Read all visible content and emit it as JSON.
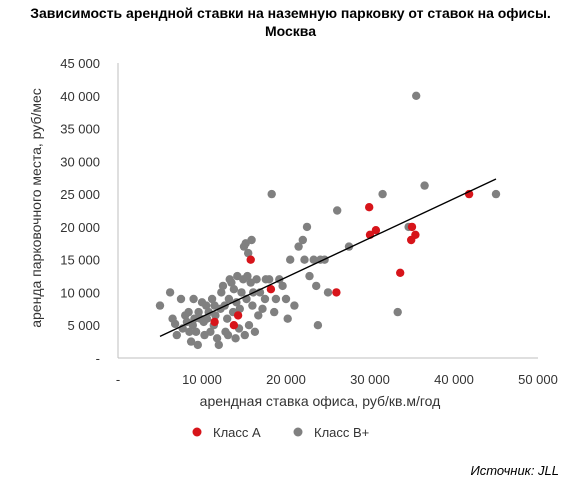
{
  "title_line1": "Зависимость арендной ставки на наземную парковку от ставок на офисы.",
  "title_line2": "Москва",
  "source": "Источник: JLL",
  "chart_data": {
    "type": "scatter",
    "xlabel": "арендная ставка офиса, руб/кв.м/год",
    "ylabel": "аренда парковочного места, руб/мес",
    "xlim": [
      0,
      50000
    ],
    "ylim": [
      0,
      45000
    ],
    "x_ticks": [
      "-",
      "10 000",
      "20 000",
      "30 000",
      "40 000",
      "50 000"
    ],
    "y_ticks": [
      "-",
      "5 000",
      "10 000",
      "15 000",
      "20 000",
      "25 000",
      "30 000",
      "35 000",
      "40 000",
      "45 000"
    ],
    "grid": false,
    "legend_position": "bottom",
    "trendline": {
      "type": "linear",
      "x": [
        5000,
        45000
      ],
      "y": [
        3300,
        27300
      ],
      "color": "#000000"
    },
    "series": [
      {
        "name": "Класс А",
        "color": "#d7141a",
        "points": [
          [
            11500,
            5500
          ],
          [
            13800,
            5000
          ],
          [
            14300,
            6500
          ],
          [
            15800,
            15000
          ],
          [
            18200,
            10500
          ],
          [
            26000,
            10000
          ],
          [
            29900,
            23000
          ],
          [
            30000,
            18800
          ],
          [
            30700,
            19500
          ],
          [
            33600,
            13000
          ],
          [
            34900,
            18000
          ],
          [
            35000,
            20000
          ],
          [
            35400,
            18800
          ],
          [
            41800,
            25000
          ]
        ]
      },
      {
        "name": "Класс В+",
        "color": "#808080",
        "points": [
          [
            5000,
            8000
          ],
          [
            6200,
            10000
          ],
          [
            6500,
            6000
          ],
          [
            6800,
            5200
          ],
          [
            7000,
            3500
          ],
          [
            7500,
            9000
          ],
          [
            7700,
            4500
          ],
          [
            8000,
            6500
          ],
          [
            8200,
            5500
          ],
          [
            8400,
            7000
          ],
          [
            8500,
            4000
          ],
          [
            8700,
            2500
          ],
          [
            8900,
            5000
          ],
          [
            9000,
            9000
          ],
          [
            9100,
            6000
          ],
          [
            9300,
            4000
          ],
          [
            9500,
            2000
          ],
          [
            9600,
            7000
          ],
          [
            9800,
            6000
          ],
          [
            10000,
            8500
          ],
          [
            10200,
            5500
          ],
          [
            10300,
            3500
          ],
          [
            10500,
            8000
          ],
          [
            10600,
            6000
          ],
          [
            10800,
            7000
          ],
          [
            11000,
            4000
          ],
          [
            11200,
            9000
          ],
          [
            11400,
            5000
          ],
          [
            11500,
            8000
          ],
          [
            11600,
            6500
          ],
          [
            11800,
            3000
          ],
          [
            12000,
            2000
          ],
          [
            12200,
            7500
          ],
          [
            12300,
            10000
          ],
          [
            12500,
            11000
          ],
          [
            12700,
            8000
          ],
          [
            12800,
            4000
          ],
          [
            13000,
            6000
          ],
          [
            13100,
            3500
          ],
          [
            13200,
            9000
          ],
          [
            13300,
            12000
          ],
          [
            13500,
            11500
          ],
          [
            13700,
            7000
          ],
          [
            13800,
            10500
          ],
          [
            14000,
            3000
          ],
          [
            14100,
            8500
          ],
          [
            14200,
            12500
          ],
          [
            14400,
            4500
          ],
          [
            14500,
            7500
          ],
          [
            14700,
            10000
          ],
          [
            14900,
            12000
          ],
          [
            15000,
            17000
          ],
          [
            15100,
            3500
          ],
          [
            15200,
            17500
          ],
          [
            15300,
            9000
          ],
          [
            15400,
            12500
          ],
          [
            15500,
            16000
          ],
          [
            15600,
            5000
          ],
          [
            15800,
            11500
          ],
          [
            15900,
            18000
          ],
          [
            16000,
            8000
          ],
          [
            16100,
            10000
          ],
          [
            16300,
            4000
          ],
          [
            16500,
            12000
          ],
          [
            16700,
            6500
          ],
          [
            16900,
            10000
          ],
          [
            17200,
            7500
          ],
          [
            17500,
            9000
          ],
          [
            17600,
            12000
          ],
          [
            18000,
            12000
          ],
          [
            18300,
            25000
          ],
          [
            18600,
            7000
          ],
          [
            18800,
            9000
          ],
          [
            19200,
            12000
          ],
          [
            19600,
            11000
          ],
          [
            20000,
            9000
          ],
          [
            20200,
            6000
          ],
          [
            20500,
            15000
          ],
          [
            21000,
            8000
          ],
          [
            21500,
            17000
          ],
          [
            22000,
            18000
          ],
          [
            22200,
            15000
          ],
          [
            22500,
            20000
          ],
          [
            22800,
            12500
          ],
          [
            23300,
            15000
          ],
          [
            23600,
            11000
          ],
          [
            23800,
            5000
          ],
          [
            24100,
            15000
          ],
          [
            24600,
            15000
          ],
          [
            25000,
            10000
          ],
          [
            26100,
            22500
          ],
          [
            27500,
            17000
          ],
          [
            31500,
            25000
          ],
          [
            33300,
            7000
          ],
          [
            34600,
            20000
          ],
          [
            35500,
            40000
          ],
          [
            36500,
            26300
          ],
          [
            45000,
            25000
          ]
        ]
      }
    ]
  }
}
